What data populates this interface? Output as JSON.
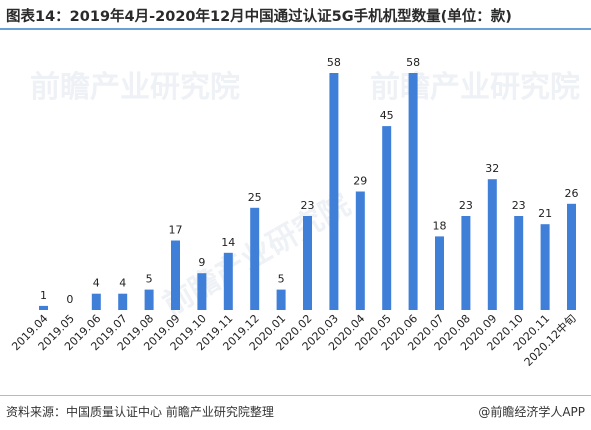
{
  "title": "图表14：2019年4月-2020年12月中国通过认证5G手机机型数量(单位：款)",
  "source": "资料来源：中国质量认证中心 前瞻产业研究院整理",
  "brand": "@前瞻经济学人APP",
  "watermark": "前瞻产业研究院",
  "colors": {
    "bar": "#3f7fd8",
    "rule": "#6aa0d6"
  },
  "chart_data": {
    "type": "bar",
    "categories": [
      "2019.04",
      "2019.05",
      "2019.06",
      "2019.07",
      "2019.08",
      "2019.09",
      "2019.10",
      "2019.11",
      "2019.12",
      "2020.01",
      "2020.02",
      "2020.03",
      "2020.04",
      "2020.05",
      "2020.06",
      "2020.07",
      "2020.08",
      "2020.09",
      "2020.10",
      "2020.11",
      "2020.12中旬"
    ],
    "values": [
      1,
      0,
      4,
      4,
      5,
      17,
      9,
      14,
      25,
      5,
      23,
      58,
      29,
      45,
      58,
      18,
      23,
      32,
      23,
      21,
      26
    ],
    "data_labels": [
      "1",
      "0",
      "4",
      "4",
      "5",
      "17",
      "9",
      "14",
      "25",
      "5",
      "23",
      "58",
      "29",
      "45",
      "58",
      "18",
      "23",
      "32",
      "23",
      "21",
      "26"
    ],
    "ylim": [
      0,
      58
    ],
    "grid": false,
    "legend": "none"
  }
}
